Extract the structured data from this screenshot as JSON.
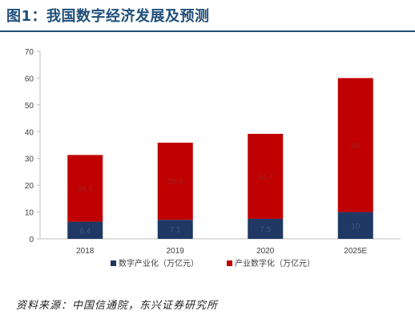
{
  "title": "图1：我国数字经济发展及预测",
  "source": "资料来源：中国信通院，东兴证券研究所",
  "chart_data": {
    "type": "bar",
    "stacked": true,
    "categories": [
      "2018",
      "2019",
      "2020",
      "2025E"
    ],
    "series": [
      {
        "name": "数字产业化（万亿元）",
        "color": "#1f3864",
        "values": [
          6.4,
          7.1,
          7.5,
          10
        ],
        "labels": [
          "6.4",
          "7.1",
          "7.5",
          "10"
        ]
      },
      {
        "name": "产业数字化（万亿元）",
        "color": "#c00000",
        "values": [
          24.9,
          28.8,
          31.7,
          50
        ],
        "labels": [
          "24.9",
          "28.8",
          "31.7",
          "50"
        ]
      }
    ],
    "yticks": [
      0,
      10,
      20,
      30,
      40,
      50,
      60,
      70
    ],
    "ylim": [
      0,
      70
    ],
    "grid": false,
    "legend": "bottom"
  }
}
